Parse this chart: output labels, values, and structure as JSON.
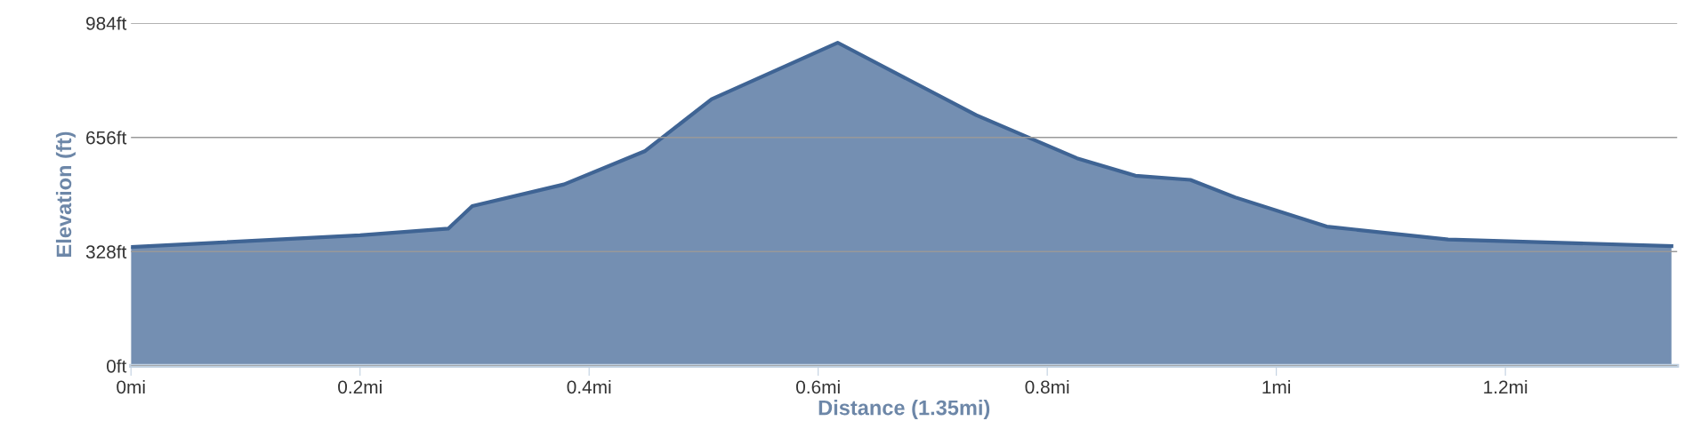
{
  "chart_data": {
    "type": "area",
    "xlabel": "Distance (1.35mi)",
    "ylabel": "Elevation (ft)",
    "x": [
      0,
      0.2,
      0.277,
      0.298,
      0.378,
      0.449,
      0.507,
      0.617,
      0.738,
      0.826,
      0.877,
      0.925,
      0.964,
      1.044,
      1.15,
      1.345
    ],
    "series": [
      {
        "color": "#3f6494",
        "values": [
          341,
          375,
          394,
          459,
          521,
          617,
          766,
          928,
          720,
          596,
          546,
          534,
          484,
          400,
          363,
          344
        ]
      }
    ],
    "xlim": [
      0,
      1.35
    ],
    "ylim": [
      0,
      984
    ],
    "xticks": [
      {
        "value": 0,
        "label": "0mi"
      },
      {
        "value": 0.2,
        "label": "0.2mi"
      },
      {
        "value": 0.4,
        "label": "0.4mi"
      },
      {
        "value": 0.6,
        "label": "0.6mi"
      },
      {
        "value": 0.8,
        "label": "0.8mi"
      },
      {
        "value": 1,
        "label": "1mi"
      },
      {
        "value": 1.2,
        "label": "1.2mi"
      }
    ],
    "yticks": [
      {
        "value": 0,
        "label": "0ft"
      },
      {
        "value": 328,
        "label": "328ft"
      },
      {
        "value": 656,
        "label": "656ft"
      },
      {
        "value": 984,
        "label": "984ft"
      }
    ],
    "grid": "y",
    "legend": false
  }
}
